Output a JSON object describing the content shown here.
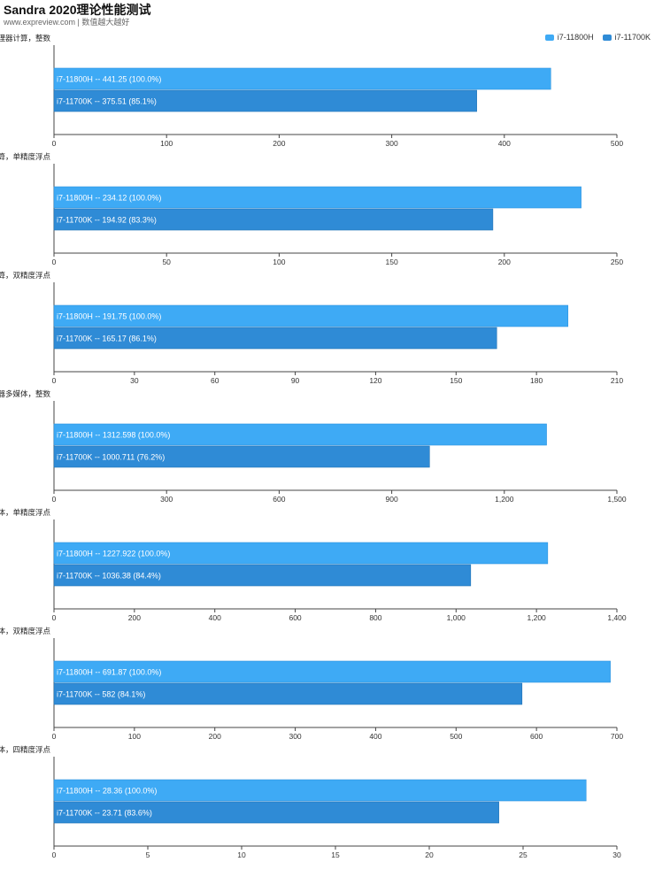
{
  "header": {
    "title": "Sandra 2020理论性能测试",
    "subtitle": "www.expreview.com | 数值越大越好"
  },
  "legend": [
    {
      "name": "i7-11800H",
      "color": "#3eaaf5"
    },
    {
      "name": "i7-11700K",
      "color": "#2f8bd6"
    }
  ],
  "chart_data": [
    {
      "type": "bar",
      "title": "处理器计算，整数",
      "xlim": [
        0,
        500
      ],
      "ticks": [
        "0",
        "100",
        "200",
        "300",
        "400",
        "500"
      ],
      "series": [
        {
          "name": "i7-11800H",
          "value": 441.25,
          "label": "i7-11800H  --  441.25 (100.0%)"
        },
        {
          "name": "i7-11700K",
          "value": 375.51,
          "label": "i7-11700K  --  375.51 (85.1%)"
        }
      ]
    },
    {
      "type": "bar",
      "title": "处理器计算，单精度浮点",
      "xlim": [
        0,
        250
      ],
      "ticks": [
        "0",
        "50",
        "100",
        "150",
        "200",
        "250"
      ],
      "series": [
        {
          "name": "i7-11800H",
          "value": 234.12,
          "label": "i7-11800H  --  234.12 (100.0%)"
        },
        {
          "name": "i7-11700K",
          "value": 194.92,
          "label": "i7-11700K  --  194.92 (83.3%)"
        }
      ]
    },
    {
      "type": "bar",
      "title": "处理器计算，双精度浮点",
      "xlim": [
        0,
        210
      ],
      "ticks": [
        "0",
        "30",
        "60",
        "90",
        "120",
        "150",
        "180",
        "210"
      ],
      "series": [
        {
          "name": "i7-11800H",
          "value": 191.75,
          "label": "i7-11800H  --  191.75 (100.0%)"
        },
        {
          "name": "i7-11700K",
          "value": 165.17,
          "label": "i7-11700K  --  165.17 (86.1%)"
        }
      ]
    },
    {
      "type": "bar",
      "title": "处理器多媒体，整数",
      "xlim": [
        0,
        1500
      ],
      "ticks": [
        "0",
        "300",
        "600",
        "900",
        "1,200",
        "1,500"
      ],
      "series": [
        {
          "name": "i7-11800H",
          "value": 1312.598,
          "label": "i7-11800H  --  1312.598 (100.0%)"
        },
        {
          "name": "i7-11700K",
          "value": 1000.711,
          "label": "i7-11700K  --  1000.711 (76.2%)"
        }
      ]
    },
    {
      "type": "bar",
      "title": "处理器多媒体，单精度浮点",
      "xlim": [
        0,
        1400
      ],
      "ticks": [
        "0",
        "200",
        "400",
        "600",
        "800",
        "1,000",
        "1,200",
        "1,400"
      ],
      "series": [
        {
          "name": "i7-11800H",
          "value": 1227.922,
          "label": "i7-11800H  --  1227.922 (100.0%)"
        },
        {
          "name": "i7-11700K",
          "value": 1036.38,
          "label": "i7-11700K  --  1036.38 (84.4%)"
        }
      ]
    },
    {
      "type": "bar",
      "title": "处理器多媒体，双精度浮点",
      "xlim": [
        0,
        700
      ],
      "ticks": [
        "0",
        "100",
        "200",
        "300",
        "400",
        "500",
        "600",
        "700"
      ],
      "series": [
        {
          "name": "i7-11800H",
          "value": 691.87,
          "label": "i7-11800H  --  691.87 (100.0%)"
        },
        {
          "name": "i7-11700K",
          "value": 582,
          "label": "i7-11700K  --  582 (84.1%)"
        }
      ]
    },
    {
      "type": "bar",
      "title": "处理器多媒体，四精度浮点",
      "xlim": [
        0,
        30
      ],
      "ticks": [
        "0",
        "5",
        "10",
        "15",
        "20",
        "25",
        "30"
      ],
      "series": [
        {
          "name": "i7-11800H",
          "value": 28.36,
          "label": "i7-11800H  --  28.36 (100.0%)"
        },
        {
          "name": "i7-11700K",
          "value": 23.71,
          "label": "i7-11700K  --  23.71 (83.6%)"
        }
      ]
    }
  ]
}
